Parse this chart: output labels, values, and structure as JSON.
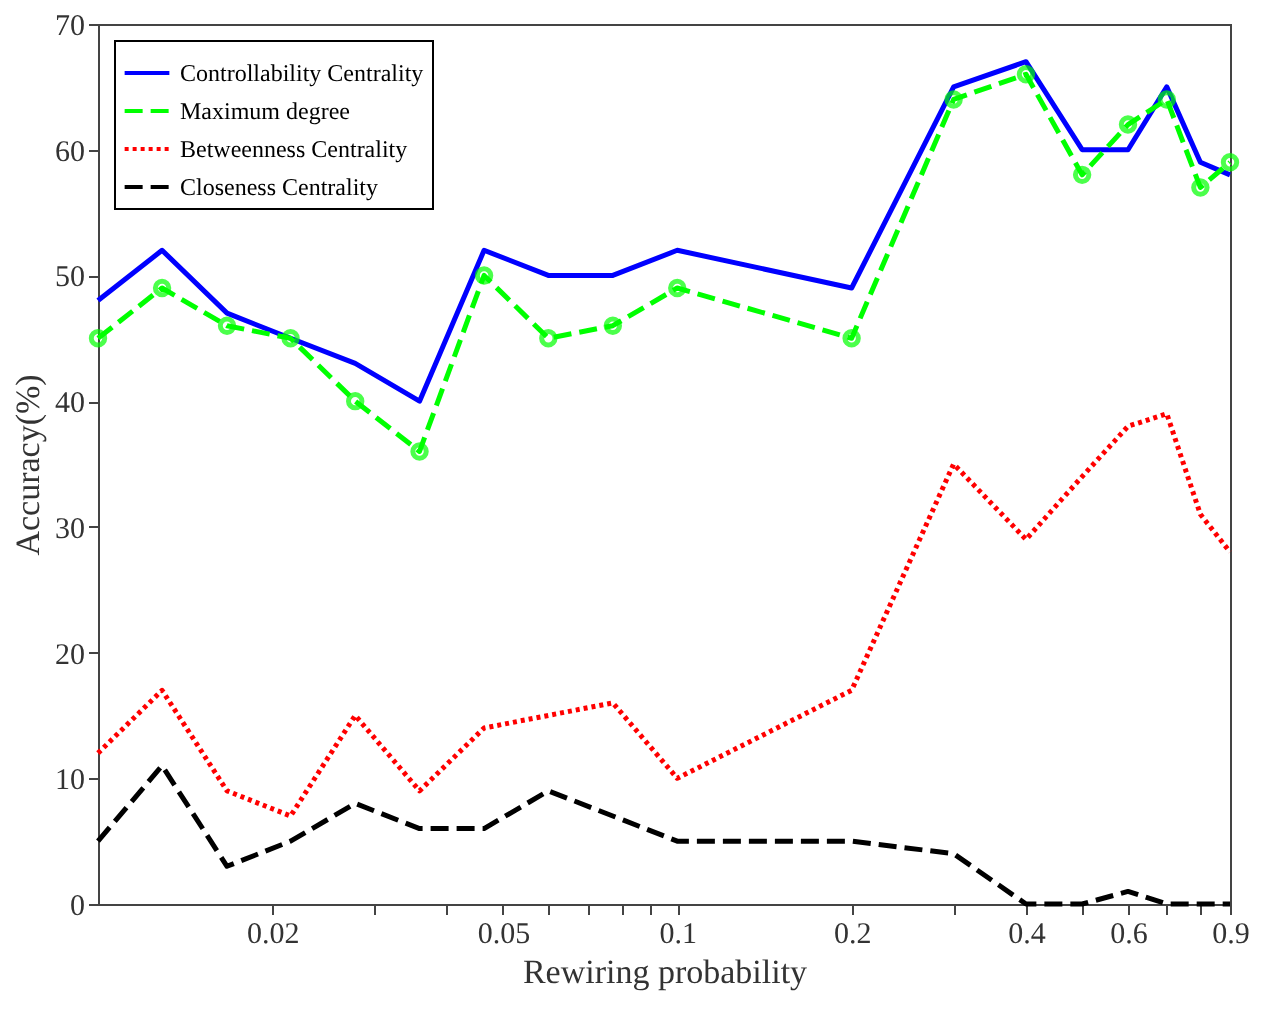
{
  "chart_data": {
    "type": "line",
    "xlabel": "Rewiring probability",
    "ylabel": "Accuracy(%)",
    "log": "x",
    "xlim": [
      0.01,
      0.9
    ],
    "ylim": [
      0,
      70
    ],
    "xticks": [
      0.02,
      {
        "value": 0.03,
        "label": null
      },
      {
        "value": 0.04,
        "label": null
      },
      0.05,
      {
        "value": 0.06,
        "label": null
      },
      {
        "value": 0.07,
        "label": null
      },
      {
        "value": 0.08,
        "label": null
      },
      {
        "value": 0.09,
        "label": null
      },
      0.1,
      0.2,
      {
        "value": 0.3,
        "label": null
      },
      0.4,
      {
        "value": 0.5,
        "label": null
      },
      0.6,
      {
        "value": 0.7,
        "label": null
      },
      {
        "value": 0.8,
        "label": null
      },
      0.9
    ],
    "yticks": [
      0,
      10,
      20,
      30,
      40,
      50,
      60,
      70
    ],
    "grid": false,
    "legend": "top left",
    "x": [
      0.01,
      0.0129,
      0.0167,
      0.0215,
      0.0278,
      0.0359,
      0.0464,
      0.0599,
      0.0774,
      0.1,
      0.2,
      0.3,
      0.4,
      0.5,
      0.6,
      0.7,
      0.8,
      0.9
    ],
    "series": [
      {
        "name": "Controllability Centrality",
        "color": "#0000ff",
        "line_style": "solid",
        "marker": "none",
        "values": [
          48,
          52,
          47,
          45,
          43,
          40,
          52,
          50,
          50,
          52,
          49,
          65,
          67,
          60,
          60,
          65,
          59,
          58
        ]
      },
      {
        "name": "Maximum degree",
        "color": "#00ff00",
        "line_style": "dashed",
        "marker": "circle",
        "values": [
          45,
          49,
          46,
          45,
          40,
          36,
          50,
          45,
          46,
          49,
          45,
          64,
          66,
          58,
          62,
          64,
          57,
          59
        ]
      },
      {
        "name": "Betweenness Centrality",
        "color": "#ff0000",
        "line_style": "dotted",
        "marker": "none",
        "values": [
          12,
          17,
          9,
          7,
          15,
          9,
          14,
          15,
          16,
          10,
          17,
          35,
          29,
          34,
          38,
          39,
          31,
          28
        ]
      },
      {
        "name": "Closeness Centrality",
        "color": "#000000",
        "line_style": "dashed",
        "marker": "none",
        "values": [
          5,
          11,
          3,
          5,
          8,
          6,
          6,
          9,
          7,
          5,
          5,
          4,
          0,
          0,
          1,
          0,
          0,
          0
        ]
      }
    ]
  }
}
